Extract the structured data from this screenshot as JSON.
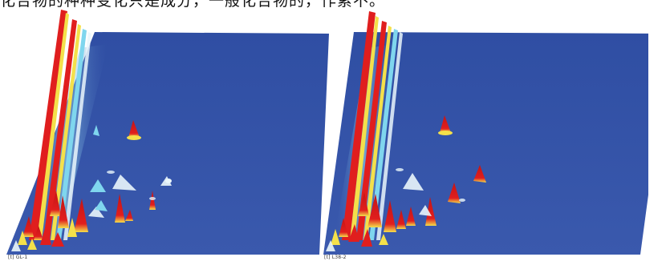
{
  "caption": {
    "text": "化合物的种种变化只是成分，一般化合物的，作累不。"
  },
  "panels": [
    {
      "label": "[t] GL-1"
    },
    {
      "label": "[t] L38-2"
    }
  ],
  "colors": {
    "surface": "#3553a6",
    "surface_dark": "#2a4596",
    "peak_red": "#e01e1e",
    "peak_yellow": "#f4e04a",
    "peak_cyan": "#7fd6ee",
    "peak_white": "#eaf6fb"
  }
}
